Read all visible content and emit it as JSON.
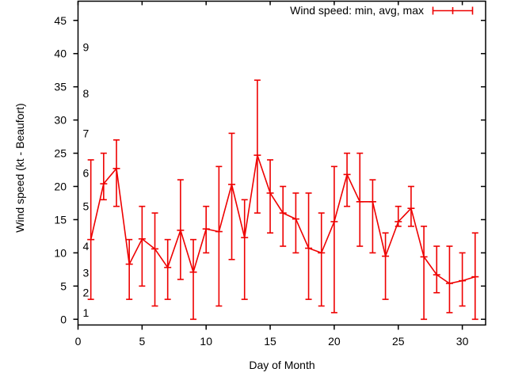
{
  "chart_data": {
    "type": "line",
    "style": "yerrorlines",
    "title": "",
    "xlabel": "Day of Month",
    "ylabel": "Wind speed (kt - Beaufort)",
    "legend_label": "Wind speed: min, avg, max",
    "legend_position": "top-right",
    "x_range": [
      0,
      31.8
    ],
    "y_range": [
      -0.9,
      47.9
    ],
    "x_ticks": [
      0,
      5,
      10,
      15,
      20,
      25,
      30
    ],
    "y_ticks": [
      0,
      5,
      10,
      15,
      20,
      25,
      30,
      35,
      40,
      45
    ],
    "grid": false,
    "colors": {
      "series": "#ee0000",
      "axis": "#000000",
      "background": "#ffffff"
    },
    "beaufort_labels": [
      {
        "label": "1",
        "kt": 1
      },
      {
        "label": "2",
        "kt": 4
      },
      {
        "label": "3",
        "kt": 7
      },
      {
        "label": "4",
        "kt": 11
      },
      {
        "label": "5",
        "kt": 17
      },
      {
        "label": "6",
        "kt": 22
      },
      {
        "label": "7",
        "kt": 28
      },
      {
        "label": "8",
        "kt": 34
      },
      {
        "label": "9",
        "kt": 41
      }
    ],
    "days": [
      1,
      2,
      3,
      4,
      5,
      6,
      7,
      8,
      9,
      10,
      11,
      12,
      13,
      14,
      15,
      16,
      17,
      18,
      19,
      20,
      21,
      22,
      23,
      24,
      25,
      26,
      27,
      28,
      29,
      30,
      31
    ],
    "series": [
      {
        "name": "avg",
        "values": [
          12.0,
          20.4,
          22.7,
          8.3,
          12.1,
          10.6,
          7.8,
          13.4,
          7.1,
          13.6,
          13.2,
          20.3,
          12.3,
          24.7,
          19.0,
          16.0,
          15.1,
          10.7,
          10.0,
          14.7,
          21.8,
          17.7,
          17.7,
          9.5,
          14.7,
          16.7,
          9.4,
          6.7,
          5.4,
          5.8,
          6.4
        ]
      },
      {
        "name": "min",
        "values": [
          3,
          18,
          17,
          3,
          5,
          2,
          3,
          6,
          0,
          10,
          2,
          9,
          3,
          16,
          13,
          11,
          10,
          3,
          2,
          1,
          17,
          11,
          10,
          3,
          14,
          14,
          0,
          4,
          1,
          2,
          0
        ]
      },
      {
        "name": "max",
        "values": [
          24,
          25,
          27,
          12,
          17,
          16,
          12,
          21,
          12,
          17,
          23,
          28,
          18,
          36,
          24,
          20,
          19,
          19,
          16,
          23,
          25,
          25,
          21,
          13,
          17,
          20,
          14,
          11,
          11,
          10,
          13
        ]
      }
    ]
  }
}
